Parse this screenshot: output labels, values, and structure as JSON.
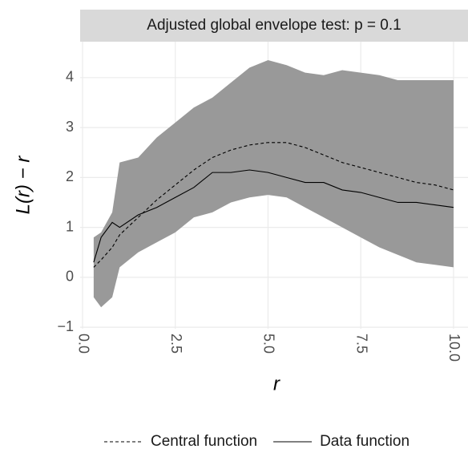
{
  "chart_data": {
    "type": "envelope",
    "title": "Adjusted global envelope test: p = 0.1",
    "xlabel": "r",
    "ylabel": "L(r) − r",
    "x": [
      0.3,
      0.5,
      0.8,
      1.0,
      1.5,
      2.0,
      2.5,
      3.0,
      3.5,
      4.0,
      4.5,
      5.0,
      5.5,
      6.0,
      6.5,
      7.0,
      7.5,
      8.0,
      8.5,
      9.0,
      9.5,
      10.0
    ],
    "envelope": {
      "color": "#999999",
      "lower": [
        -0.4,
        -0.6,
        -0.4,
        0.2,
        0.5,
        0.7,
        0.9,
        1.2,
        1.3,
        1.5,
        1.6,
        1.65,
        1.6,
        1.4,
        1.2,
        1.0,
        0.8,
        0.6,
        0.45,
        0.3,
        0.25,
        0.2
      ],
      "upper": [
        0.8,
        0.9,
        1.3,
        2.3,
        2.4,
        2.8,
        3.1,
        3.4,
        3.6,
        3.9,
        4.2,
        4.35,
        4.25,
        4.1,
        4.05,
        4.15,
        4.1,
        4.05,
        3.95,
        3.95,
        3.95,
        3.95
      ]
    },
    "series": [
      {
        "name": "Central function",
        "color": "#000000",
        "dash": "dashed",
        "values": [
          0.2,
          0.35,
          0.6,
          0.85,
          1.2,
          1.55,
          1.85,
          2.15,
          2.4,
          2.55,
          2.65,
          2.7,
          2.7,
          2.6,
          2.45,
          2.3,
          2.2,
          2.1,
          2.0,
          1.9,
          1.85,
          1.75
        ]
      },
      {
        "name": "Data function",
        "color": "#000000",
        "dash": "solid",
        "values": [
          0.3,
          0.8,
          1.1,
          1.0,
          1.25,
          1.4,
          1.6,
          1.8,
          2.1,
          2.1,
          2.15,
          2.1,
          2.0,
          1.9,
          1.9,
          1.75,
          1.7,
          1.6,
          1.5,
          1.5,
          1.45,
          1.4
        ]
      }
    ],
    "xlim": [
      -0.065,
      10.39
    ],
    "ylim": [
      -1.03,
      4.72
    ],
    "xticks": [
      {
        "value": 0,
        "label": "0.0"
      },
      2.5,
      {
        "value": 5,
        "label": "5.0"
      },
      7.5,
      {
        "value": 10,
        "label": "10.0"
      }
    ],
    "yticks": [
      {
        "value": -1,
        "label": "−1"
      },
      0,
      1,
      2,
      3,
      4
    ],
    "grid": true,
    "legend": "bottom"
  }
}
